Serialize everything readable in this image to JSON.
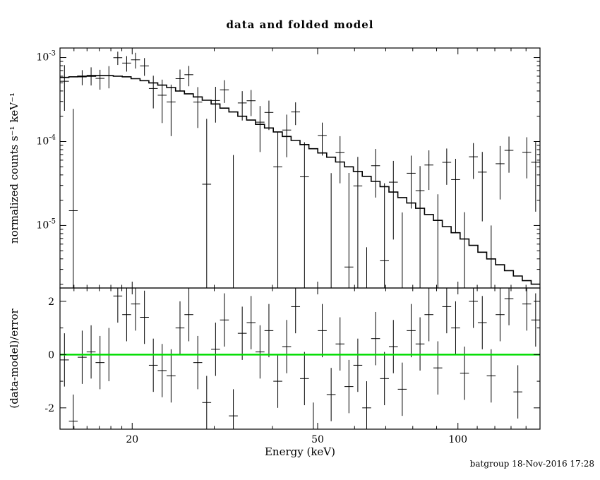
{
  "footer": "batgroup 18-Nov-2016 17:28",
  "colors": {
    "foreground": "#000000",
    "background": "#ffffff",
    "zero_line": "#00dd00"
  },
  "chart_data": {
    "type": "line",
    "title": "data and folded model",
    "x": {
      "label": "Energy (keV)",
      "scale": "log",
      "lim": [
        14,
        150
      ],
      "major_ticks": [
        20,
        50,
        100
      ],
      "minor_ticks": [
        15,
        16,
        17,
        18,
        19,
        30,
        40,
        60,
        70,
        80,
        90,
        110,
        120,
        130,
        140
      ]
    },
    "top_panel": {
      "ylabel": "normalized counts s⁻¹ keV⁻¹",
      "yscale": "log",
      "ylim": [
        1.8e-06,
        0.0013
      ],
      "ytick_exponents": [
        -3,
        -4,
        -5
      ],
      "bin_edges": [
        14.0,
        14.63,
        15.28,
        15.97,
        16.69,
        17.44,
        18.22,
        19.04,
        19.89,
        20.79,
        21.72,
        22.69,
        23.71,
        24.78,
        25.89,
        27.05,
        28.27,
        29.54,
        30.86,
        32.25,
        33.7,
        35.21,
        36.79,
        38.45,
        40.17,
        41.98,
        43.86,
        45.83,
        47.89,
        50.04,
        52.29,
        54.64,
        57.09,
        59.65,
        62.33,
        65.13,
        68.05,
        71.11,
        74.3,
        77.64,
        81.13,
        84.77,
        88.58,
        92.56,
        96.71,
        101.06,
        105.6,
        110.34,
        115.29,
        120.47,
        125.88,
        131.54,
        137.45,
        143.62,
        150.07
      ],
      "series": [
        {
          "name": "folded model",
          "style": "step-line",
          "values": [
            0.00058,
            0.00059,
            0.0006,
            0.0006,
            0.00061,
            0.00061,
            0.0006,
            0.00059,
            0.00056,
            0.00053,
            0.0005,
            0.00047,
            0.00044,
            0.0004,
            0.00037,
            0.00034,
            0.00031,
            0.00028,
            0.00025,
            0.000225,
            0.0002,
            0.00018,
            0.00016,
            0.000145,
            0.00013,
            0.000115,
            0.000103,
            9.2e-05,
            8.2e-05,
            7.3e-05,
            6.5e-05,
            5.7e-05,
            5e-05,
            4.4e-05,
            3.85e-05,
            3.35e-05,
            2.9e-05,
            2.5e-05,
            2.15e-05,
            1.85e-05,
            1.6e-05,
            1.35e-05,
            1.15e-05,
            9.7e-06,
            8.2e-06,
            6.9e-06,
            5.8e-06,
            4.8e-06,
            4e-06,
            3.4e-06,
            2.9e-06,
            2.5e-06,
            2.2e-06,
            2e-06
          ]
        },
        {
          "name": "data",
          "style": "points-with-errors",
          "values": [
            0.000522,
            1.5e-05,
            0.000588,
            0.000615,
            0.000565,
            0.00061,
            0.000996,
            0.00086,
            0.00094,
            0.000796,
            0.000428,
            0.000356,
            0.000296,
            0.00056,
            0.000625,
            0.000295,
            3.1e-05,
            0.000308,
            0.000413,
            -5.1e-05,
            0.000288,
            0.000306,
            0.00017,
            0.000222,
            5e-05,
            0.000137,
            0.000225,
            3.8e-05,
            -7.5e-05,
            0.000118,
            -4e-06,
            7.38e-05,
            3.2e-06,
            2.96e-05,
            -2.75e-05,
            5.15e-05,
            3.8e-06,
            3.28e-05,
            -9.7e-06,
            4.19e-05,
            2.6e-05,
            5.25e-05,
            -5e-07,
            5.65e-05,
            3.52e-05,
            -1.06e-05,
            6.58e-05,
            4.32e-05,
            -2e-05,
            5.44e-05,
            7.85e-05,
            -4.37e-05,
            7.44e-05,
            5.66e-05
          ],
          "errors": [
            0.00029,
            0.00023,
            0.00012,
            0.00015,
            0.00015,
            0.00018,
            0.00018,
            0.00018,
            0.0002,
            0.00019,
            0.00018,
            0.00019,
            0.00018,
            0.00016,
            0.00017,
            0.00015,
            0.000155,
            0.00014,
            0.000125,
            0.00012,
            0.00011,
            0.000105,
            9.5e-05,
            8.5e-05,
            8e-05,
            7.2e-05,
            6.8e-05,
            6e-05,
            5.6e-05,
            5e-05,
            4.6e-05,
            4.2e-05,
            3.9e-05,
            3.6e-05,
            3.3e-05,
            3e-05,
            2.8e-05,
            2.6e-05,
            2.4e-05,
            2.6e-05,
            2.5e-05,
            2.6e-05,
            2.4e-05,
            2.6e-05,
            2.7e-05,
            2.5e-05,
            3e-05,
            3.2e-05,
            3e-05,
            3.4e-05,
            3.6e-05,
            3.3e-05,
            3.8e-05,
            4.2e-05
          ]
        }
      ]
    },
    "bottom_panel": {
      "ylabel": "(data-model)/error",
      "ylim": [
        -2.8,
        2.5
      ],
      "yticks": [
        -2,
        0,
        2
      ],
      "minor_yticks": [
        -1,
        1
      ],
      "zero_line_color": "#00dd00",
      "residual_error": 1,
      "residuals": [
        -0.2,
        -2.5,
        -0.1,
        0.1,
        -0.3,
        0.0,
        2.2,
        1.5,
        1.9,
        1.4,
        -0.4,
        -0.6,
        -0.8,
        1.0,
        1.5,
        -0.3,
        -1.8,
        0.2,
        1.3,
        -2.3,
        0.8,
        1.2,
        0.1,
        0.9,
        -1.0,
        0.3,
        1.8,
        -0.9,
        -2.8,
        0.9,
        -1.5,
        0.4,
        -1.2,
        -0.4,
        -2.0,
        0.6,
        -0.9,
        0.3,
        -1.3,
        0.9,
        0.4,
        1.5,
        -0.5,
        1.8,
        1.0,
        -0.7,
        2.0,
        1.2,
        -0.8,
        1.5,
        2.1,
        -1.4,
        1.9,
        1.3
      ]
    }
  }
}
